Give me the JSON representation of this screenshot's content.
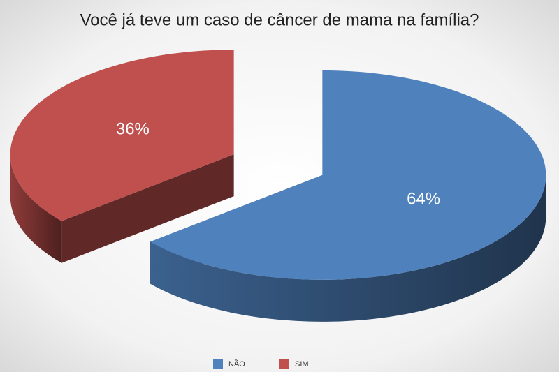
{
  "chart_data": {
    "type": "pie",
    "title": "Você já teve um caso de câncer de mama na família?",
    "categories": [
      "NÃO",
      "SIM"
    ],
    "values": [
      64,
      36
    ],
    "value_labels": [
      "64%",
      "36%"
    ],
    "colors": [
      "#4f81bd",
      "#c0504d"
    ],
    "legend": "bottom"
  }
}
